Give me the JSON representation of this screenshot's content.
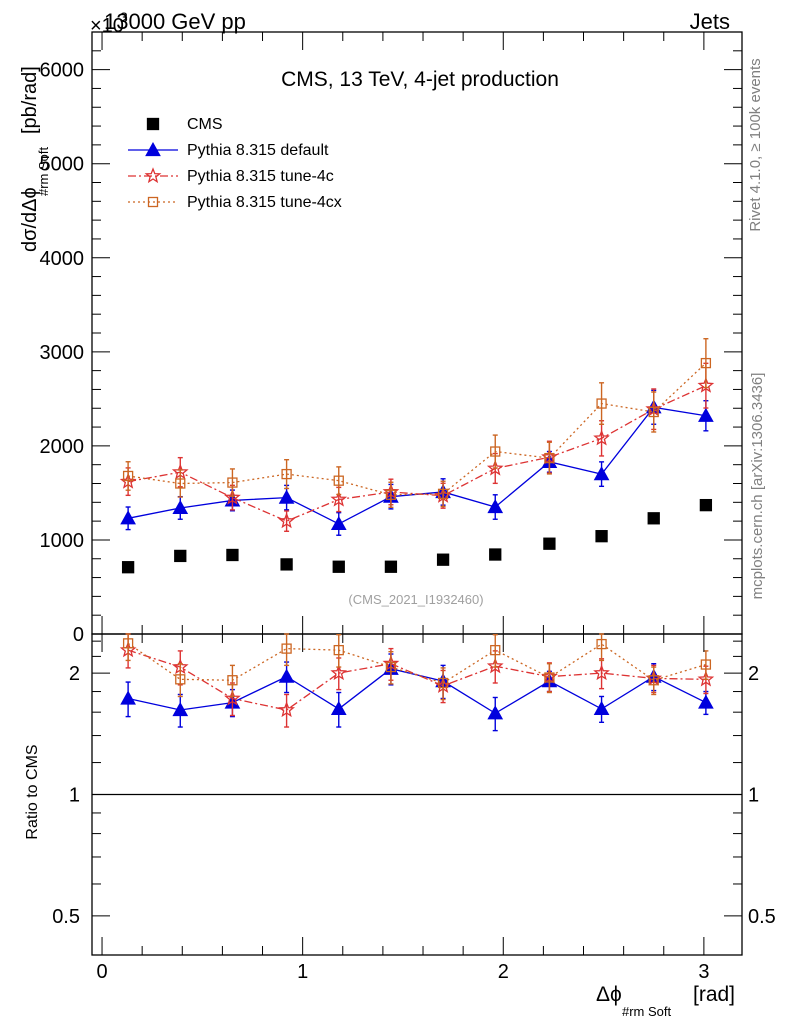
{
  "header": {
    "left": "13000 GeV pp",
    "right": "Jets",
    "multiplier_base": "×10",
    "multiplier_exp": "3"
  },
  "side_labels": {
    "rivet": "Rivet 4.1.0, ≥ 100k events",
    "mcplots": "mcplots.cern.ch [arXiv:1306.3436]"
  },
  "colors": {
    "cms": "#000000",
    "default": "#0000dd",
    "tune4c": "#dd3333",
    "tune4cx": "#cc6622",
    "grey": "#808080"
  },
  "chart_data": [
    {
      "type": "scatter",
      "panel": "main",
      "title": "CMS, 13 TeV, 4-jet production",
      "analysis_id": "(CMS_2021_I1932460)",
      "ylabel": "dσ/dΔϕ#rm Soft [pb/rad]",
      "ylabel_main": "dσ/dΔϕ",
      "ylabel_sub": "#rm Soft",
      "ylabel_unit": "[pb/rad]",
      "ylim": [
        0,
        6400
      ],
      "yticks": [
        0,
        1000,
        2000,
        3000,
        4000,
        5000,
        6000
      ],
      "ytick_labels": [
        "0",
        "1000",
        "2000",
        "3000",
        "4000",
        "5000",
        "6000"
      ],
      "xlim": [
        -0.05,
        3.19
      ],
      "legend_position": "top-left",
      "legend": [
        "CMS",
        "Pythia 8.315 default",
        "Pythia 8.315 tune-4c",
        "Pythia 8.315 tune-4cx"
      ],
      "x": [
        0.13,
        0.39,
        0.65,
        0.92,
        1.18,
        1.44,
        1.7,
        1.96,
        2.23,
        2.49,
        2.75,
        3.01
      ],
      "series": [
        {
          "name": "CMS",
          "style": "cms",
          "values": [
            710,
            830,
            840,
            740,
            715,
            715,
            790,
            845,
            960,
            1040,
            1230,
            1370
          ],
          "errors": [
            0,
            0,
            0,
            0,
            0,
            0,
            0,
            0,
            0,
            0,
            0,
            0
          ]
        },
        {
          "name": "Pythia 8.315 default",
          "style": "default",
          "values": [
            1230,
            1340,
            1420,
            1450,
            1170,
            1460,
            1510,
            1350,
            1830,
            1700,
            2410,
            2320
          ],
          "errors": [
            120,
            120,
            110,
            130,
            120,
            130,
            140,
            130,
            110,
            130,
            180,
            160
          ]
        },
        {
          "name": "Pythia 8.315 tune-4c",
          "style": "tune4c",
          "values": [
            1620,
            1720,
            1450,
            1200,
            1430,
            1510,
            1470,
            1760,
            1880,
            2080,
            2390,
            2640
          ]
        },
        {
          "name": "Pythia 8.315 tune-4cx",
          "style": "tune4cx",
          "values": [
            1680,
            1600,
            1610,
            1700,
            1630,
            1480,
            1490,
            1940,
            1870,
            2450,
            2360,
            2880
          ]
        }
      ]
    },
    {
      "type": "scatter",
      "panel": "ratio",
      "ylabel": "Ratio to CMS",
      "yscale": "log",
      "ylim": [
        0.4,
        2.5
      ],
      "yticks": [
        0.5,
        1,
        2
      ],
      "ytick_labels": [
        "0.5",
        "1",
        "2"
      ],
      "xlim": [
        -0.05,
        3.19
      ],
      "xticks": [
        0,
        1,
        2,
        3
      ],
      "xtick_labels": [
        "0",
        "1",
        "2",
        "3"
      ],
      "xlabel": "Δϕ#rm Soft [rad]",
      "xlabel_main": "Δϕ",
      "xlabel_sub": "#rm Soft",
      "xlabel_unit": "[rad]",
      "x": [
        0.13,
        0.39,
        0.65,
        0.92,
        1.18,
        1.44,
        1.7,
        1.96,
        2.23,
        2.49,
        2.75,
        3.01
      ],
      "reference": 1,
      "series": [
        {
          "name": "Pythia 8.315 default",
          "style": "default",
          "values": [
            1.73,
            1.62,
            1.69,
            1.96,
            1.63,
            2.05,
            1.91,
            1.59,
            1.91,
            1.63,
            1.96,
            1.69
          ],
          "errors": [
            0.17,
            0.15,
            0.13,
            0.17,
            0.16,
            0.18,
            0.18,
            0.15,
            0.11,
            0.12,
            0.15,
            0.11
          ]
        },
        {
          "name": "Pythia 8.315 tune-4c",
          "style": "tune4c",
          "values": [
            2.28,
            2.07,
            1.73,
            1.62,
            2.0,
            2.11,
            1.86,
            2.08,
            1.96,
            2.0,
            1.94,
            1.93
          ],
          "errors": [
            0.22,
            0.2,
            0.16,
            0.15,
            0.18,
            0.19,
            0.17,
            0.19,
            0.16,
            0.17,
            0.15,
            0.15
          ]
        },
        {
          "name": "Pythia 8.315 tune-4cx",
          "style": "tune4cx",
          "values": [
            2.37,
            1.93,
            1.92,
            2.3,
            2.28,
            2.07,
            1.89,
            2.28,
            1.95,
            2.36,
            1.92,
            2.1
          ],
          "errors": [
            0.22,
            0.18,
            0.17,
            0.21,
            0.21,
            0.19,
            0.17,
            0.21,
            0.16,
            0.21,
            0.15,
            0.17
          ]
        }
      ]
    }
  ]
}
